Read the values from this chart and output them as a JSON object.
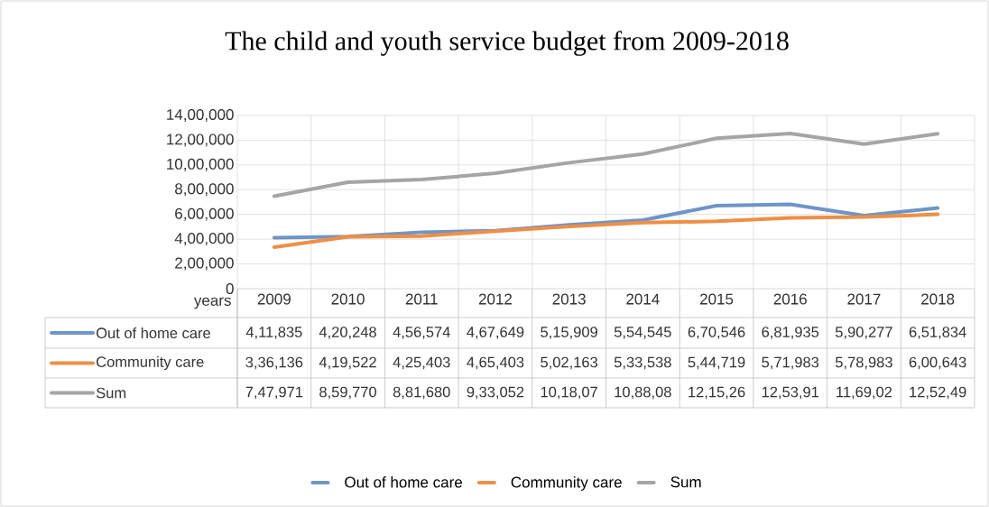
{
  "chart_data": {
    "type": "line",
    "title": "The child and youth service budget from 2009-2018",
    "xlabel": "years",
    "categories": [
      "2009",
      "2010",
      "2011",
      "2012",
      "2013",
      "2014",
      "2015",
      "2016",
      "2017",
      "2018"
    ],
    "series": [
      {
        "name": "Out of home care",
        "color": "#6e95c8",
        "values": [
          411835,
          420248,
          456574,
          467649,
          515909,
          554545,
          670546,
          681935,
          590277,
          651834
        ],
        "value_labels": [
          "4,11,835",
          "4,20,248",
          "4,56,574",
          "4,67,649",
          "5,15,909",
          "5,54,545",
          "6,70,546",
          "6,81,935",
          "5,90,277",
          "6,51,834"
        ]
      },
      {
        "name": "Community care",
        "color": "#ee8f45",
        "values": [
          336136,
          419522,
          425403,
          465403,
          502163,
          533538,
          544719,
          571983,
          578983,
          600643
        ],
        "value_labels": [
          "3,36,136",
          "4,19,522",
          "4,25,403",
          "4,65,403",
          "5,02,163",
          "5,33,538",
          "5,44,719",
          "5,71,983",
          "5,78,983",
          "6,00,643"
        ]
      },
      {
        "name": "Sum",
        "color": "#a5a5a5",
        "values": [
          747971,
          859770,
          881680,
          933052,
          1018070,
          1088080,
          1215260,
          1253910,
          1169020,
          1252490
        ],
        "value_labels": [
          "7,47,971",
          "8,59,770",
          "8,81,680",
          "9,33,052",
          "10,18,07",
          "10,88,08",
          "12,15,26",
          "12,53,91",
          "11,69,02",
          "12,52,49"
        ]
      }
    ],
    "ylim": [
      0,
      1400000
    ],
    "yticks": [
      0,
      {
        "value": 200000,
        "label": "2,00,000"
      },
      {
        "value": 400000,
        "label": "4,00,000"
      },
      {
        "value": 600000,
        "label": "6,00,000"
      },
      {
        "value": 800000,
        "label": "8,00,000"
      },
      {
        "value": 1000000,
        "label": "10,00,000"
      },
      {
        "value": 1200000,
        "label": "12,00,000"
      },
      {
        "value": 1400000,
        "label": "14,00,000"
      }
    ],
    "grid": true,
    "legend": "bottom",
    "marker": "none",
    "line_style": "solid"
  }
}
